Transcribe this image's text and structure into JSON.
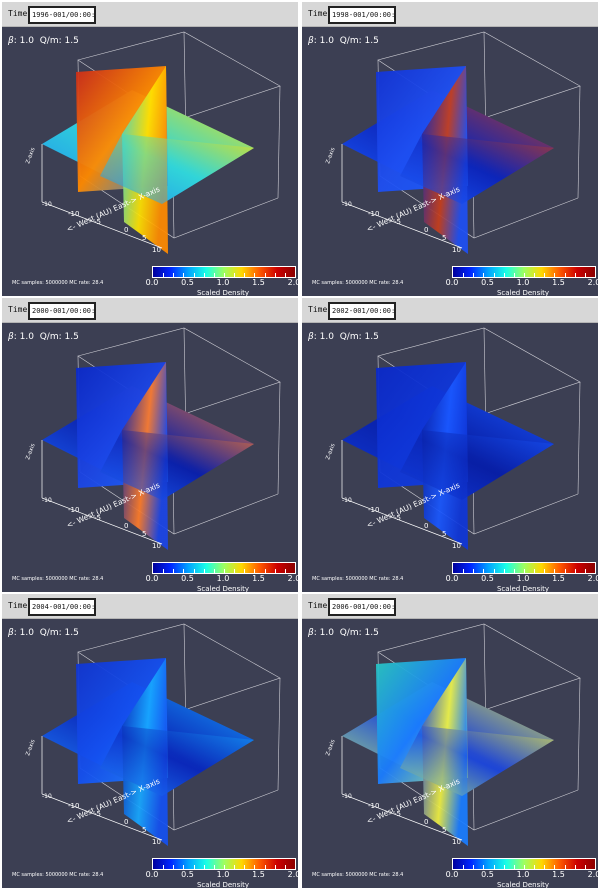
{
  "common": {
    "time_label": "Time:",
    "beta_symbol": "β",
    "beta_value": ": 1.0",
    "qm_label": "Q/m: 1.5",
    "mc_text": "MC samples: 5000000  MC rate: 28.4",
    "colorbar": {
      "title": "Scaled Density",
      "ticks": [
        "0.0",
        "0.5",
        "1.0",
        "1.5",
        "2.0"
      ],
      "colormap": [
        "#00009c",
        "#0026ff",
        "#00a5ff",
        "#19ffe6",
        "#9dff60",
        "#ffd700",
        "#ff5a00",
        "#cc0000",
        "#8b0000"
      ]
    },
    "axis": {
      "x_title": "<- West (AU) East-> X-axis",
      "x_ticks": [
        "-10",
        "-5",
        "0",
        "5",
        "10"
      ],
      "z_title": "Z-axis",
      "y_ticks": [
        "-10",
        "-5",
        "0",
        "5",
        "10"
      ]
    }
  },
  "panels": [
    {
      "time": "1996-001/00:00:00",
      "palette": [
        "#cc2a1a",
        "#ff8a00",
        "#ffe200",
        "#31d6d8",
        "#1f8cf0"
      ]
    },
    {
      "time": "1998-001/00:00:00",
      "palette": [
        "#1233d6",
        "#1e4ff2",
        "#c73e1a",
        "#0c24b8",
        "#1c5dff"
      ]
    },
    {
      "time": "2000-001/00:00:00",
      "palette": [
        "#0a28c8",
        "#1b45e6",
        "#ff7c28",
        "#0a1fa8",
        "#1d66ff"
      ]
    },
    {
      "time": "2002-001/00:00:00",
      "palette": [
        "#0a28c8",
        "#0f36d8",
        "#1a58ff",
        "#081ea4",
        "#123ddc"
      ]
    },
    {
      "time": "2004-001/00:00:00",
      "palette": [
        "#1034d0",
        "#1450f0",
        "#17a8ff",
        "#0a26b8",
        "#2187ff"
      ]
    },
    {
      "time": "2006-001/00:00:00",
      "palette": [
        "#28c7c0",
        "#1a7cff",
        "#f0f040",
        "#1a42d8",
        "#b7f27b"
      ]
    }
  ]
}
